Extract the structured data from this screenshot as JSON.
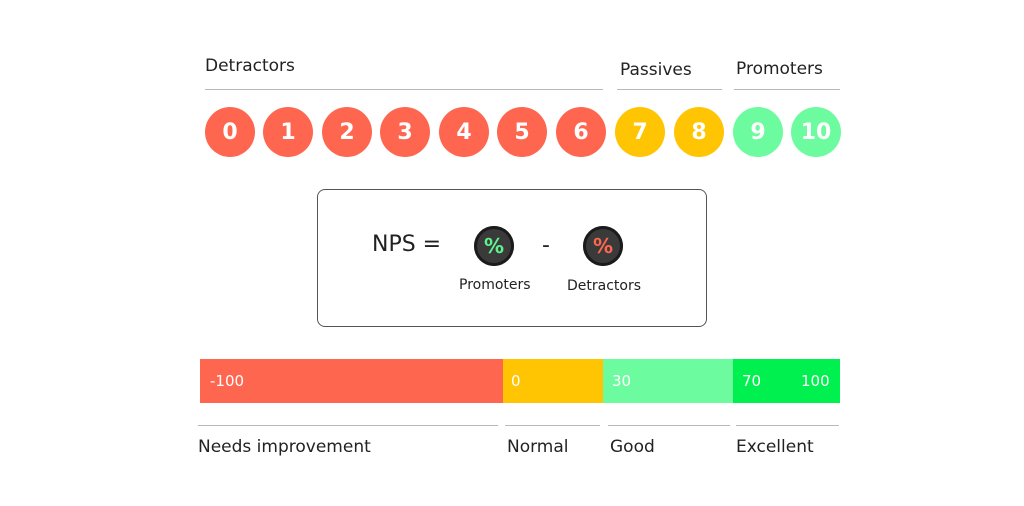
{
  "groups": {
    "detractors": "Detractors",
    "passives": "Passives",
    "promoters": "Promoters"
  },
  "scores": [
    {
      "label": "0",
      "group": "detractor"
    },
    {
      "label": "1",
      "group": "detractor"
    },
    {
      "label": "2",
      "group": "detractor"
    },
    {
      "label": "3",
      "group": "detractor"
    },
    {
      "label": "4",
      "group": "detractor"
    },
    {
      "label": "5",
      "group": "detractor"
    },
    {
      "label": "6",
      "group": "detractor"
    },
    {
      "label": "7",
      "group": "passive"
    },
    {
      "label": "8",
      "group": "passive"
    },
    {
      "label": "9",
      "group": "promoter"
    },
    {
      "label": "10",
      "group": "promoter"
    }
  ],
  "formula": {
    "nps_label": "NPS =",
    "percent_symbol": "%",
    "minus": "-",
    "promoters_label": "Promoters",
    "detractors_label": "Detractors"
  },
  "range_bar": {
    "values": [
      "-100",
      "0",
      "30",
      "70",
      "100"
    ],
    "colors": {
      "needs_improvement": "#ff6650",
      "normal": "#ffc502",
      "good": "#6dfb9f",
      "excellent": "#00f050"
    }
  },
  "categories": {
    "needs_improvement": "Needs improvement",
    "normal": "Normal",
    "good": "Good",
    "excellent": "Excellent"
  },
  "colors": {
    "detractor": "#ff6650",
    "passive": "#ffc502",
    "promoter": "#6dfb9f"
  }
}
